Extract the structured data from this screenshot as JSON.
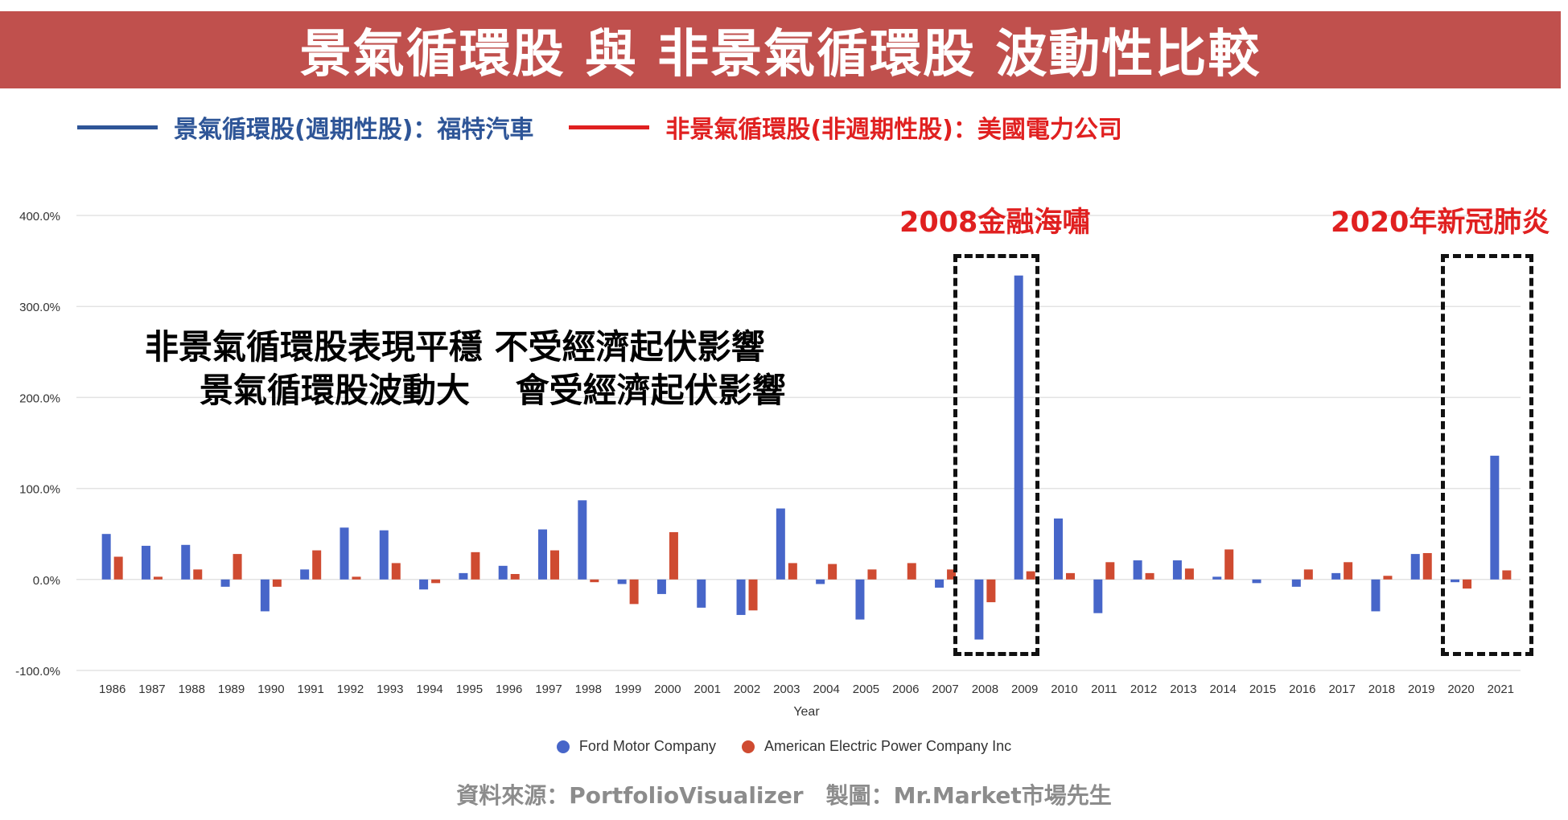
{
  "banner": {
    "title": "景氣循環股 與 非景氣循環股 波動性比較"
  },
  "top_legend": [
    {
      "label": "景氣循環股(週期性股)：福特汽車",
      "color": "#2e5597"
    },
    {
      "label": "非景氣循環股(非週期性股)：美國電力公司",
      "color": "#e02020"
    }
  ],
  "annotations": {
    "line1": "非景氣循環股表現平穩 不受經濟起伏影響",
    "line2": "景氣循環股波動大　 會受經濟起伏影響"
  },
  "events": [
    {
      "label": "2008金融海嘯",
      "years": [
        "2008",
        "2009"
      ]
    },
    {
      "label": "2020年新冠肺炎",
      "years": [
        "2020",
        "2021"
      ]
    }
  ],
  "source": "資料來源：PortfolioVisualizer　製圖：Mr.Market市場先生",
  "chart_data": {
    "type": "bar",
    "title": "",
    "xlabel": "Year",
    "ylabel": "",
    "ylim": [
      -100,
      400
    ],
    "yticks": [
      400,
      300,
      200,
      100,
      0,
      -100
    ],
    "ytick_labels": [
      "400.0%",
      "300.0%",
      "200.0%",
      "100.0%",
      "0.0%",
      "-100.0%"
    ],
    "grid": true,
    "legend_position": "bottom",
    "categories": [
      "1986",
      "1987",
      "1988",
      "1989",
      "1990",
      "1991",
      "1992",
      "1993",
      "1994",
      "1995",
      "1996",
      "1997",
      "1998",
      "1999",
      "2000",
      "2001",
      "2002",
      "2003",
      "2004",
      "2005",
      "2006",
      "2007",
      "2008",
      "2009",
      "2010",
      "2011",
      "2012",
      "2013",
      "2014",
      "2015",
      "2016",
      "2017",
      "2018",
      "2019",
      "2020",
      "2021"
    ],
    "series": [
      {
        "name": "Ford Motor Company",
        "color": "#4766c9",
        "values": [
          50,
          37,
          38,
          -8,
          -35,
          11,
          57,
          54,
          -11,
          7,
          15,
          55,
          87,
          -5,
          -16,
          -31,
          -39,
          78,
          -5,
          -44,
          0,
          -9,
          -66,
          334,
          67,
          -37,
          21,
          21,
          3,
          -4,
          -8,
          7,
          -35,
          28,
          -3,
          136
        ]
      },
      {
        "name": "American Electric Power Company Inc",
        "color": "#cf4b31",
        "values": [
          25,
          3,
          11,
          28,
          -8,
          32,
          3,
          18,
          -4,
          30,
          6,
          32,
          -3,
          -27,
          52,
          0,
          -34,
          18,
          17,
          11,
          18,
          11,
          -25,
          9,
          7,
          19,
          7,
          12,
          33,
          0,
          11,
          19,
          4,
          29,
          -10,
          10
        ]
      }
    ]
  }
}
